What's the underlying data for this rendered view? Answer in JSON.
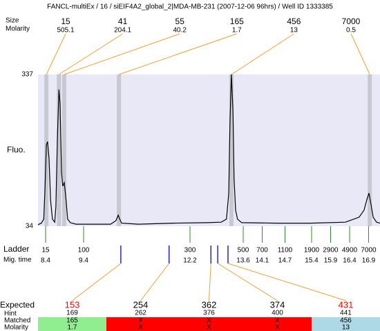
{
  "chart_data": {
    "type": "line",
    "title": "FANCL-multiEx / 16 / siEIF4A2_global_2|MDA-MB-231 (2007-12-06 96hrs) / Well ID 1333385",
    "y_label": "Fluo.",
    "size_label": "Size",
    "molarity_label": "Molarity",
    "ladder_label": "Ladder",
    "time_label": "Mig. time",
    "color": "#000000",
    "xlim": [
      8.2,
      17.2
    ],
    "ylim": [
      34,
      337
    ],
    "yticks": [
      34,
      337
    ],
    "x": [
      8.2,
      8.29,
      8.35,
      8.38,
      8.42,
      8.45,
      8.49,
      8.53,
      8.58,
      8.64,
      8.67,
      8.71,
      8.75,
      8.78,
      8.82,
      8.85,
      8.89,
      8.93,
      8.98,
      9.05,
      9.2,
      10.11,
      10.25,
      10.31,
      10.35,
      10.4,
      10.84,
      11.75,
      12.65,
      13.02,
      13.16,
      13.22,
      13.25,
      13.29,
      13.33,
      13.36,
      13.4,
      13.45,
      13.56,
      14.47,
      15.38,
      16.29,
      16.65,
      16.78,
      16.85,
      16.91,
      16.96,
      17.02,
      17.11,
      17.2
    ],
    "values": [
      37,
      40,
      48,
      100,
      196,
      203,
      169,
      86,
      48,
      42,
      73,
      210,
      307,
      279,
      141,
      114,
      121,
      93,
      48,
      41,
      38,
      38,
      45,
      56,
      48,
      40,
      38,
      40,
      41,
      42,
      48,
      100,
      238,
      337,
      265,
      128,
      66,
      48,
      41,
      40,
      40,
      42,
      52,
      66,
      86,
      100,
      79,
      52,
      42,
      40
    ],
    "band_color": "#c8c8d2",
    "plot_background": "#e8e8f6",
    "peaks": {
      "sizes": [
        15,
        41,
        55,
        165,
        456,
        7000
      ],
      "molarity": [
        505.1,
        204.1,
        40.2,
        1.7,
        13,
        0.5
      ],
      "times": [
        8.42,
        8.75,
        8.89,
        10.33,
        13.29,
        16.93
      ]
    },
    "ladder": {
      "sizes": [
        15,
        100,
        300,
        500,
        700,
        1100,
        1900,
        2900,
        4900,
        7000
      ],
      "times": [
        8.4,
        9.4,
        12.2,
        13.6,
        14.1,
        14.7,
        15.4,
        15.9,
        16.4,
        16.9
      ]
    },
    "expected": {
      "row_labels": [
        "Expected",
        "Hint",
        "Matched",
        "Molarity"
      ],
      "expected": [
        153,
        254,
        362,
        374,
        431
      ],
      "hint": [
        169,
        262,
        376,
        400,
        441
      ],
      "matched": [
        165,
        "X",
        "X",
        "X",
        456
      ],
      "molarity": [
        1.7,
        "X",
        "X",
        "X",
        13
      ],
      "times": [
        10.38,
        11.65,
        12.75,
        12.93,
        13.2
      ],
      "expected_colors": [
        "#ff0000",
        "#000000",
        "#000000",
        "#000000",
        "#ff0000"
      ],
      "match_colors": [
        "#90ee90",
        "#ff0000",
        "#ff0000",
        "#ff0000",
        "#add8e6"
      ]
    }
  }
}
